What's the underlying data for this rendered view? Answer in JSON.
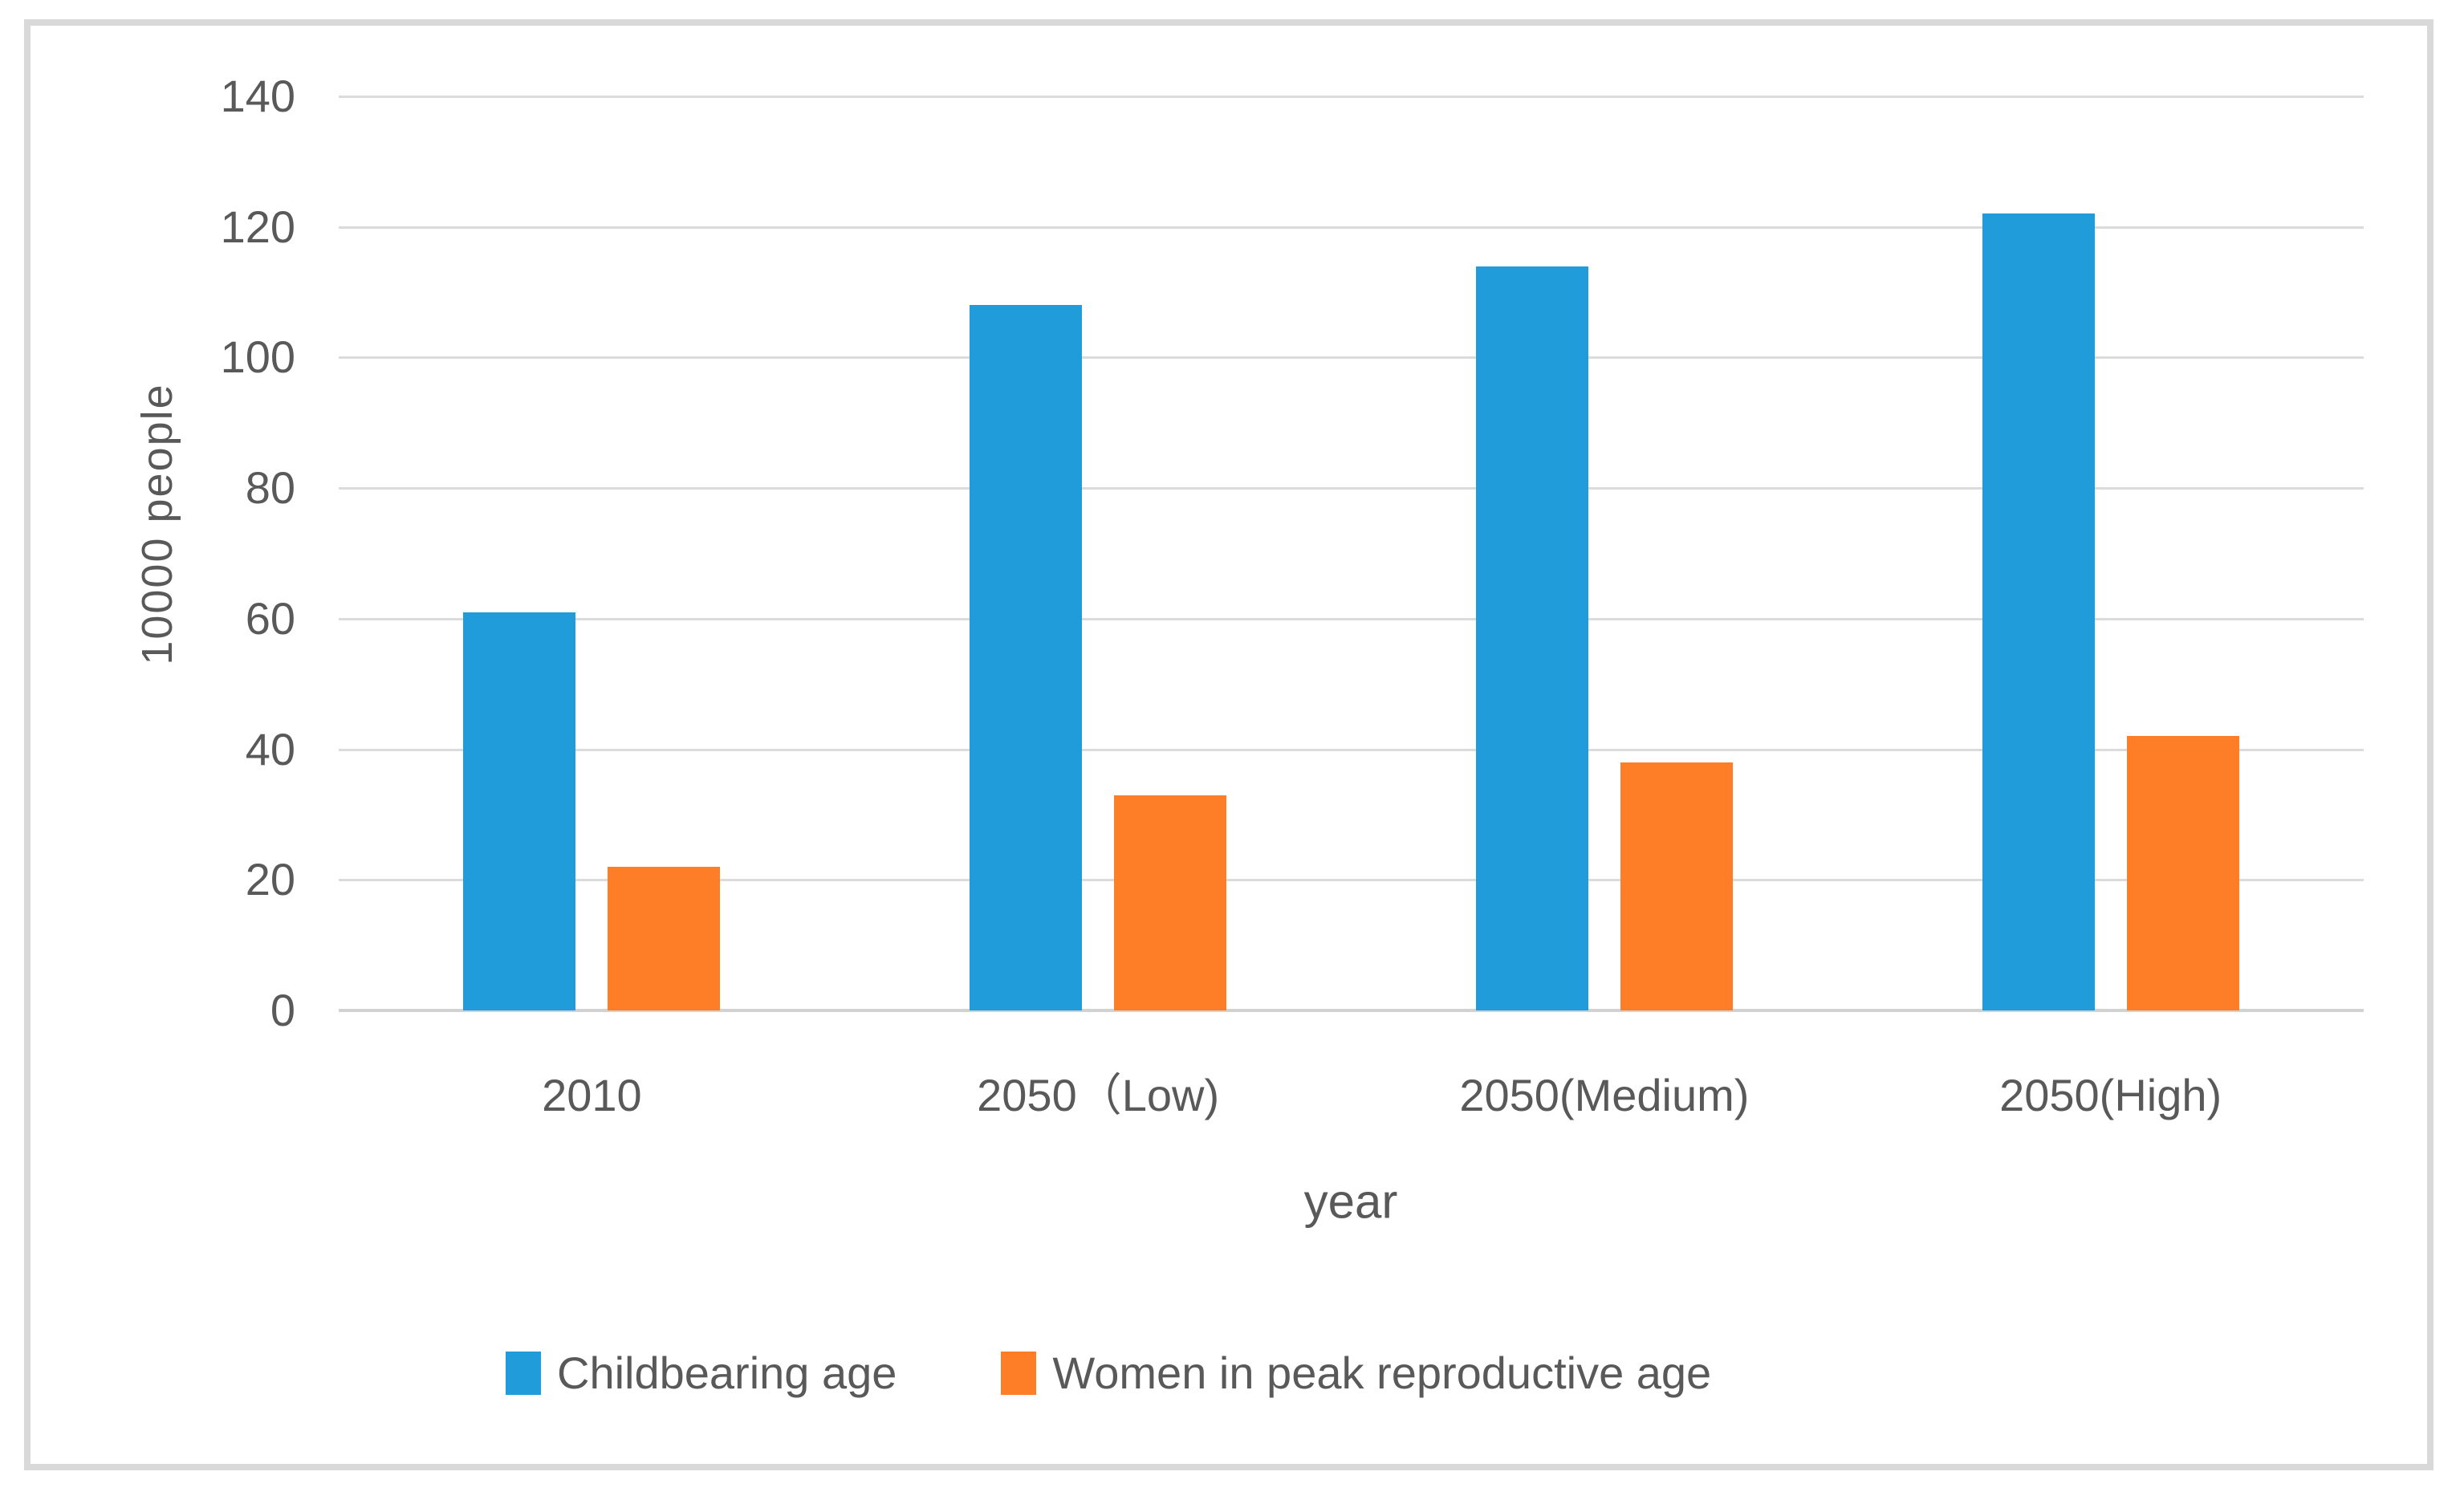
{
  "chart_data": {
    "type": "bar",
    "title": "",
    "categories": [
      "2010",
      "2050（Low)",
      "2050(Medium)",
      "2050(High)"
    ],
    "series": [
      {
        "name": "Childbearing age",
        "color": "#1F9CD9",
        "values": [
          61,
          108,
          114,
          122
        ]
      },
      {
        "name": "Women in peak reproductive age",
        "color": "#FD7E26",
        "values": [
          22,
          33,
          38,
          42
        ]
      }
    ],
    "xlabel": "year",
    "ylabel": "10000 people",
    "ylim": [
      0,
      140
    ],
    "yticks": [
      0,
      20,
      40,
      60,
      80,
      100,
      120,
      140
    ],
    "grid": true,
    "legend_position": "bottom"
  },
  "colors": {
    "grid": "#DBDBDB",
    "axis": "#D2D2D2",
    "text": "#595959",
    "border": "#D9D9D9",
    "background": "#FFFFFF"
  }
}
